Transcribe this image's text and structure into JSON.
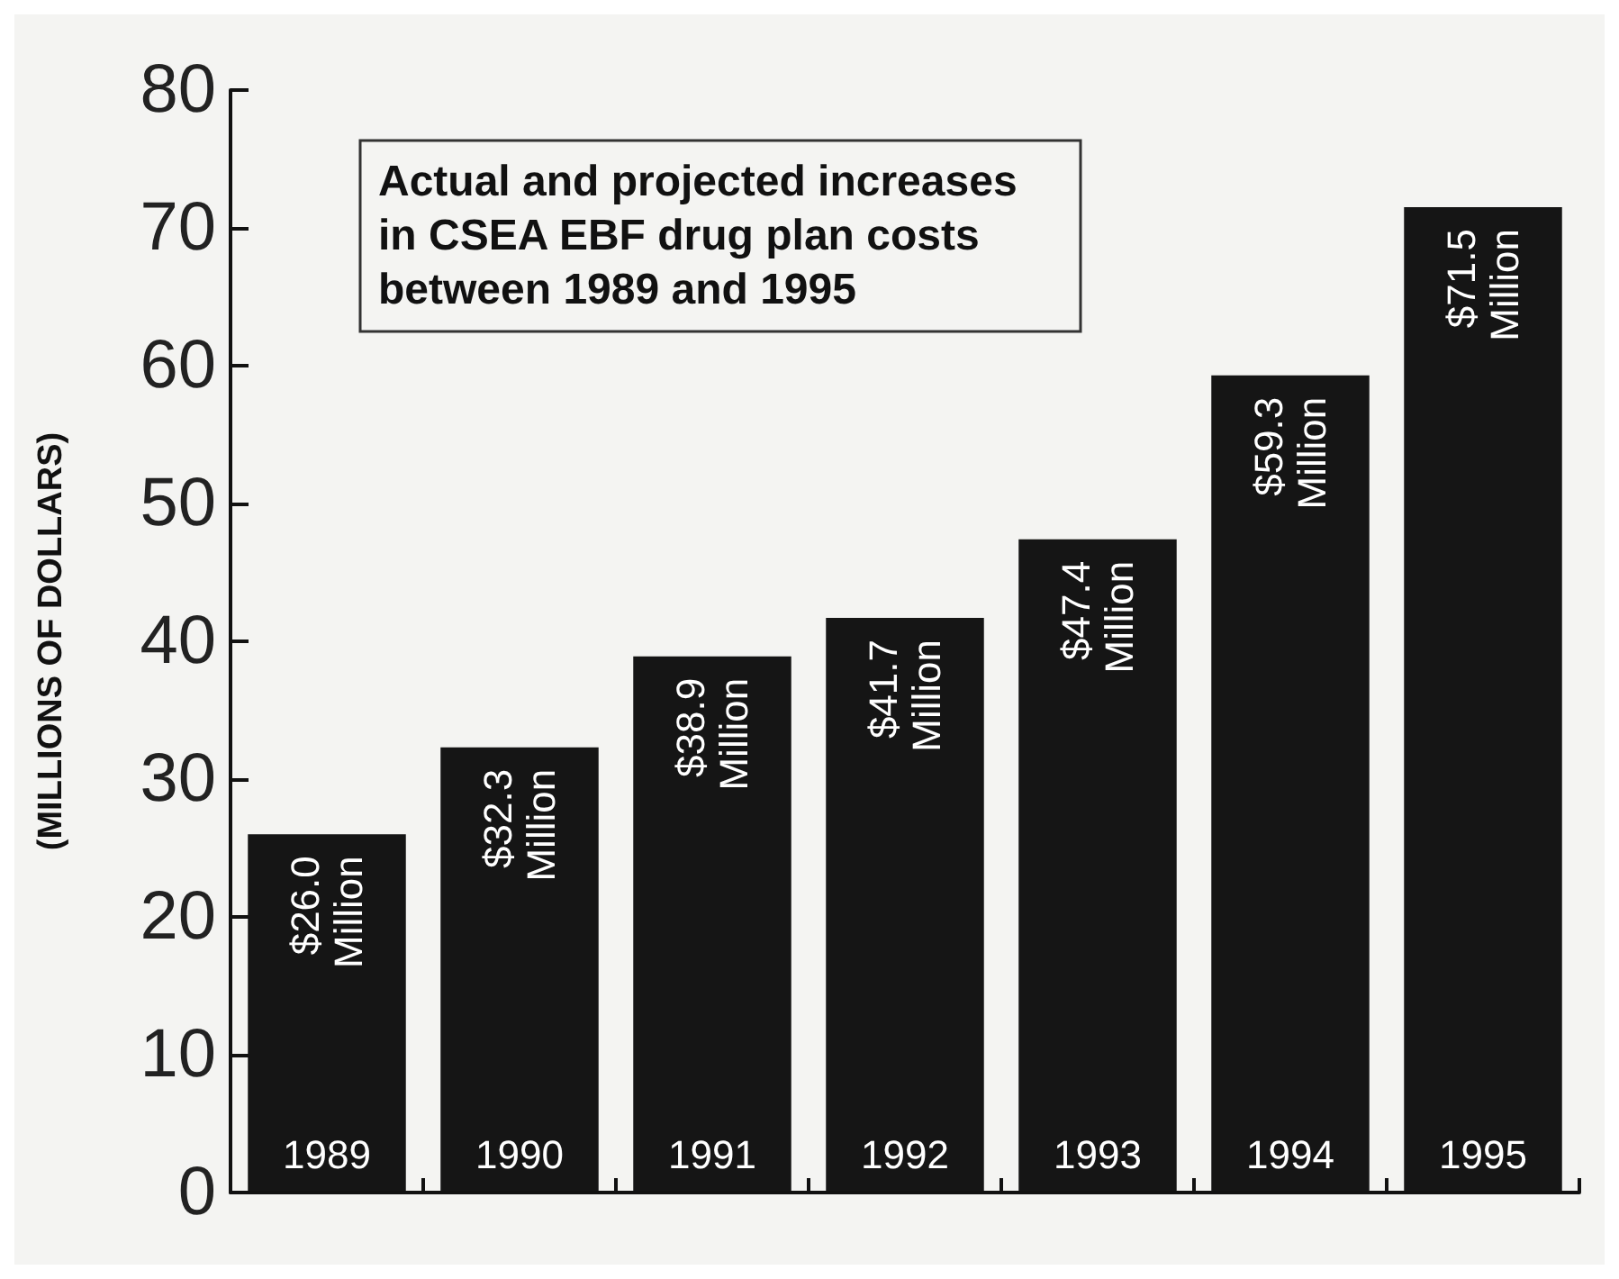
{
  "chart_data": {
    "type": "bar",
    "title": "Actual and projected increases in CSEA EBF drug plan costs between 1989 and 1995",
    "ylabel": "(MILLIONS OF DOLLARS)",
    "categories": [
      "1989",
      "1990",
      "1991",
      "1992",
      "1993",
      "1994",
      "1995"
    ],
    "values": [
      26.0,
      32.3,
      38.9,
      41.7,
      47.4,
      59.3,
      71.5
    ],
    "value_labels": [
      "$26.0 Million",
      "$32.3 Million",
      "$38.9 Million",
      "$41.7 Million",
      "$47.4 Million",
      "$59.3 Million",
      "$71.5 Million"
    ],
    "color": "#151515",
    "ylim": [
      0,
      80
    ],
    "yticks": [
      0,
      10,
      20,
      30,
      40,
      50,
      60,
      70,
      80
    ],
    "grid": false
  }
}
